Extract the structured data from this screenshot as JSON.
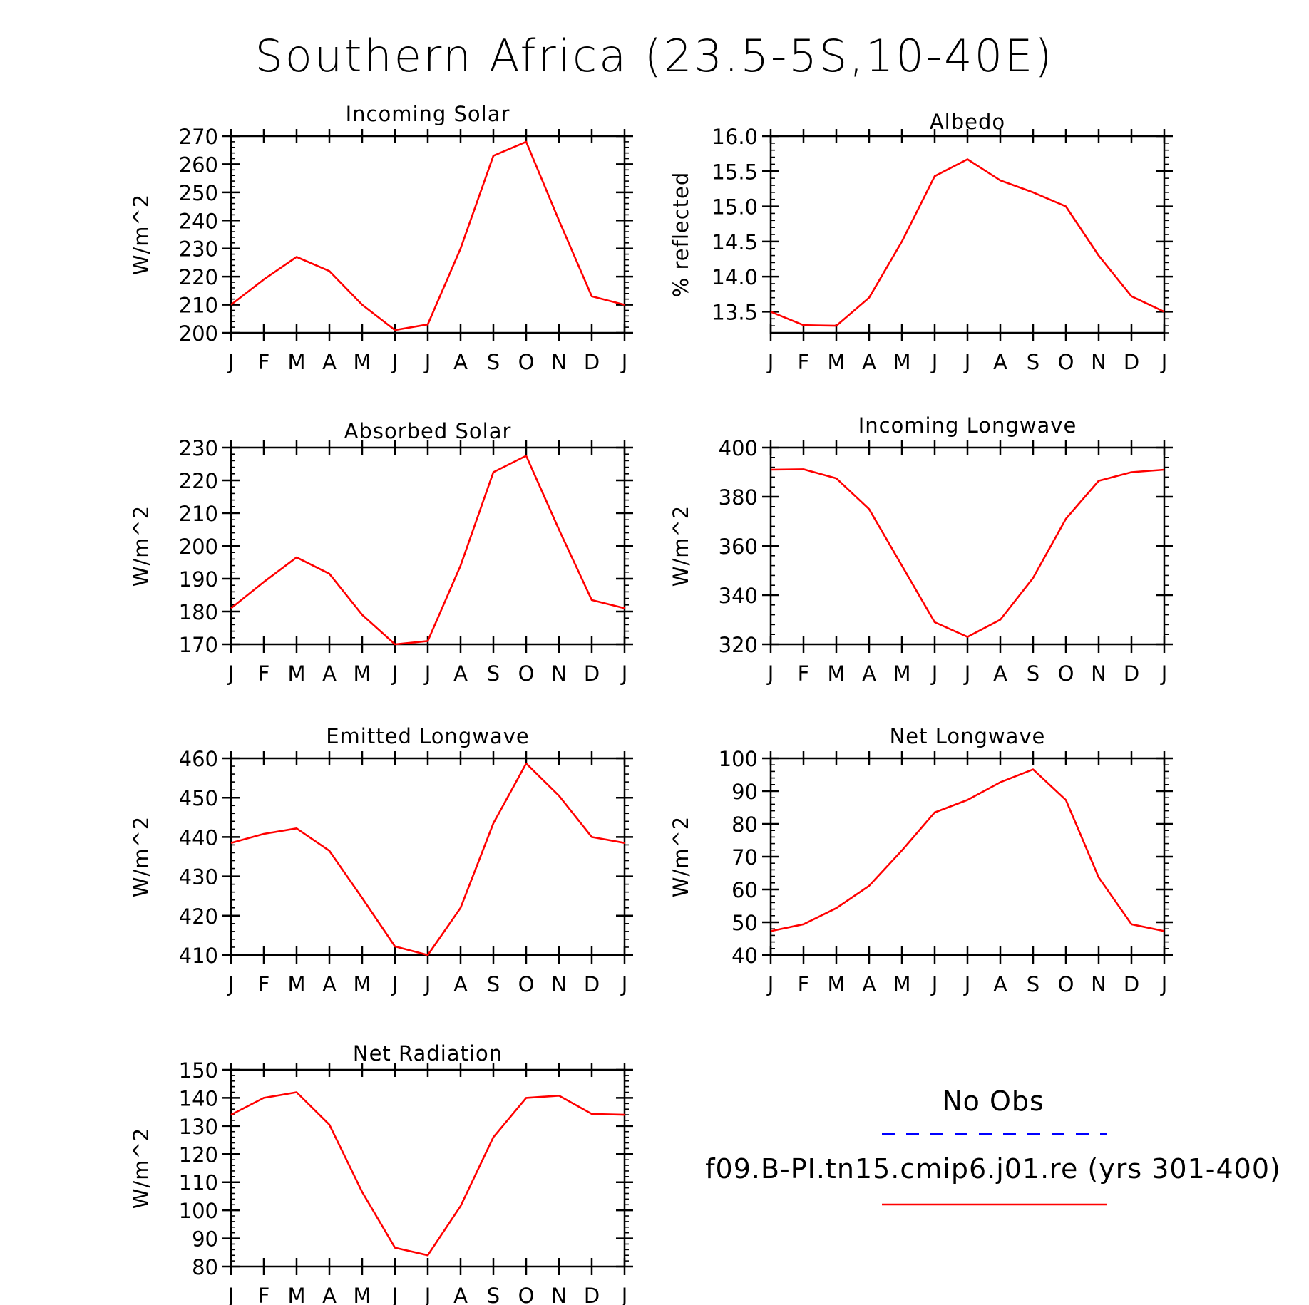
{
  "title": "Southern Africa (23.5-5S,10-40E)",
  "legend": {
    "obs_label": "No Obs",
    "obs_color": "#0000ff",
    "model_label": "f09.B-PI.tn15.cmip6.j01.re (yrs 301-400)",
    "model_color": "#ff0000"
  },
  "chart_data": [
    {
      "type": "line",
      "title": "Incoming Solar",
      "ylabel": "W/m^2",
      "x": [
        "J",
        "F",
        "M",
        "A",
        "M",
        "J",
        "J",
        "A",
        "S",
        "O",
        "N",
        "D",
        "J"
      ],
      "ylim": [
        200,
        270
      ],
      "yticks": [
        200,
        210,
        220,
        230,
        240,
        250,
        260,
        270
      ],
      "ytick_labels": [
        "200",
        "210",
        "220",
        "230",
        "240",
        "250",
        "260",
        "270"
      ],
      "series": [
        {
          "color": "#ff0000",
          "values": [
            210,
            219,
            227,
            222,
            210,
            201,
            203,
            230,
            263,
            268,
            240,
            213,
            210
          ]
        }
      ]
    },
    {
      "type": "line",
      "title": "Albedo",
      "ylabel": "% reflected",
      "x": [
        "J",
        "F",
        "M",
        "A",
        "M",
        "J",
        "J",
        "A",
        "S",
        "O",
        "N",
        "D",
        "J"
      ],
      "ylim": [
        13.2,
        16.0
      ],
      "yticks": [
        13.5,
        14.0,
        14.5,
        15.0,
        15.5,
        16.0
      ],
      "ytick_labels": [
        "13.5",
        "14.0",
        "14.5",
        "15.0",
        "15.5",
        "16.0"
      ],
      "series": [
        {
          "color": "#ff0000",
          "values": [
            13.5,
            13.31,
            13.3,
            13.7,
            14.5,
            15.43,
            15.67,
            15.37,
            15.2,
            15.0,
            14.3,
            13.72,
            13.5
          ]
        }
      ]
    },
    {
      "type": "line",
      "title": "Absorbed Solar",
      "ylabel": "W/m^2",
      "x": [
        "J",
        "F",
        "M",
        "A",
        "M",
        "J",
        "J",
        "A",
        "S",
        "O",
        "N",
        "D",
        "J"
      ],
      "ylim": [
        170,
        230
      ],
      "yticks": [
        170,
        180,
        190,
        200,
        210,
        220,
        230
      ],
      "ytick_labels": [
        "170",
        "180",
        "190",
        "200",
        "210",
        "220",
        "230"
      ],
      "series": [
        {
          "color": "#ff0000",
          "values": [
            181,
            189,
            196.5,
            191.5,
            179,
            170,
            171,
            194,
            222.5,
            227.5,
            205,
            183.5,
            181
          ]
        }
      ]
    },
    {
      "type": "line",
      "title": "Incoming Longwave",
      "ylabel": "W/m^2",
      "x": [
        "J",
        "F",
        "M",
        "A",
        "M",
        "J",
        "J",
        "A",
        "S",
        "O",
        "N",
        "D",
        "J"
      ],
      "ylim": [
        320,
        400
      ],
      "yticks": [
        320,
        340,
        360,
        380,
        400
      ],
      "ytick_labels": [
        "320",
        "340",
        "360",
        "380",
        "400"
      ],
      "series": [
        {
          "color": "#ff0000",
          "values": [
            391,
            391.2,
            387.5,
            375,
            352,
            329,
            323,
            330,
            347,
            371,
            386.5,
            390,
            391
          ]
        }
      ]
    },
    {
      "type": "line",
      "title": "Emitted Longwave",
      "ylabel": "W/m^2",
      "x": [
        "J",
        "F",
        "M",
        "A",
        "M",
        "J",
        "J",
        "A",
        "S",
        "O",
        "N",
        "D",
        "J"
      ],
      "ylim": [
        410,
        460
      ],
      "yticks": [
        410,
        420,
        430,
        440,
        450,
        460
      ],
      "ytick_labels": [
        "410",
        "420",
        "430",
        "440",
        "450",
        "460"
      ],
      "series": [
        {
          "color": "#ff0000",
          "values": [
            438.5,
            440.8,
            442.2,
            436.5,
            424.5,
            412.2,
            410,
            422,
            443.5,
            458.7,
            450.5,
            440,
            438.5
          ]
        }
      ]
    },
    {
      "type": "line",
      "title": "Net Longwave",
      "ylabel": "W/m^2",
      "x": [
        "J",
        "F",
        "M",
        "A",
        "M",
        "J",
        "J",
        "A",
        "S",
        "O",
        "N",
        "D",
        "J"
      ],
      "ylim": [
        40,
        100
      ],
      "yticks": [
        40,
        50,
        60,
        70,
        80,
        90,
        100
      ],
      "ytick_labels": [
        "40",
        "50",
        "60",
        "70",
        "80",
        "90",
        "100"
      ],
      "series": [
        {
          "color": "#ff0000",
          "values": [
            47.3,
            49.4,
            54.3,
            61.1,
            71.9,
            83.5,
            87.3,
            92.7,
            96.6,
            87.3,
            63.7,
            49.4,
            47.3
          ]
        }
      ]
    },
    {
      "type": "line",
      "title": "Net Radiation",
      "ylabel": "W/m^2",
      "x": [
        "J",
        "F",
        "M",
        "A",
        "M",
        "J",
        "J",
        "A",
        "S",
        "O",
        "N",
        "D",
        "J"
      ],
      "ylim": [
        80,
        150
      ],
      "yticks": [
        80,
        90,
        100,
        110,
        120,
        130,
        140,
        150
      ],
      "ytick_labels": [
        "80",
        "90",
        "100",
        "110",
        "120",
        "130",
        "140",
        "150"
      ],
      "series": [
        {
          "color": "#ff0000",
          "values": [
            134,
            140,
            142,
            130.5,
            106.5,
            86.7,
            84,
            101.5,
            126,
            140,
            140.8,
            134.3,
            134
          ]
        }
      ]
    }
  ]
}
